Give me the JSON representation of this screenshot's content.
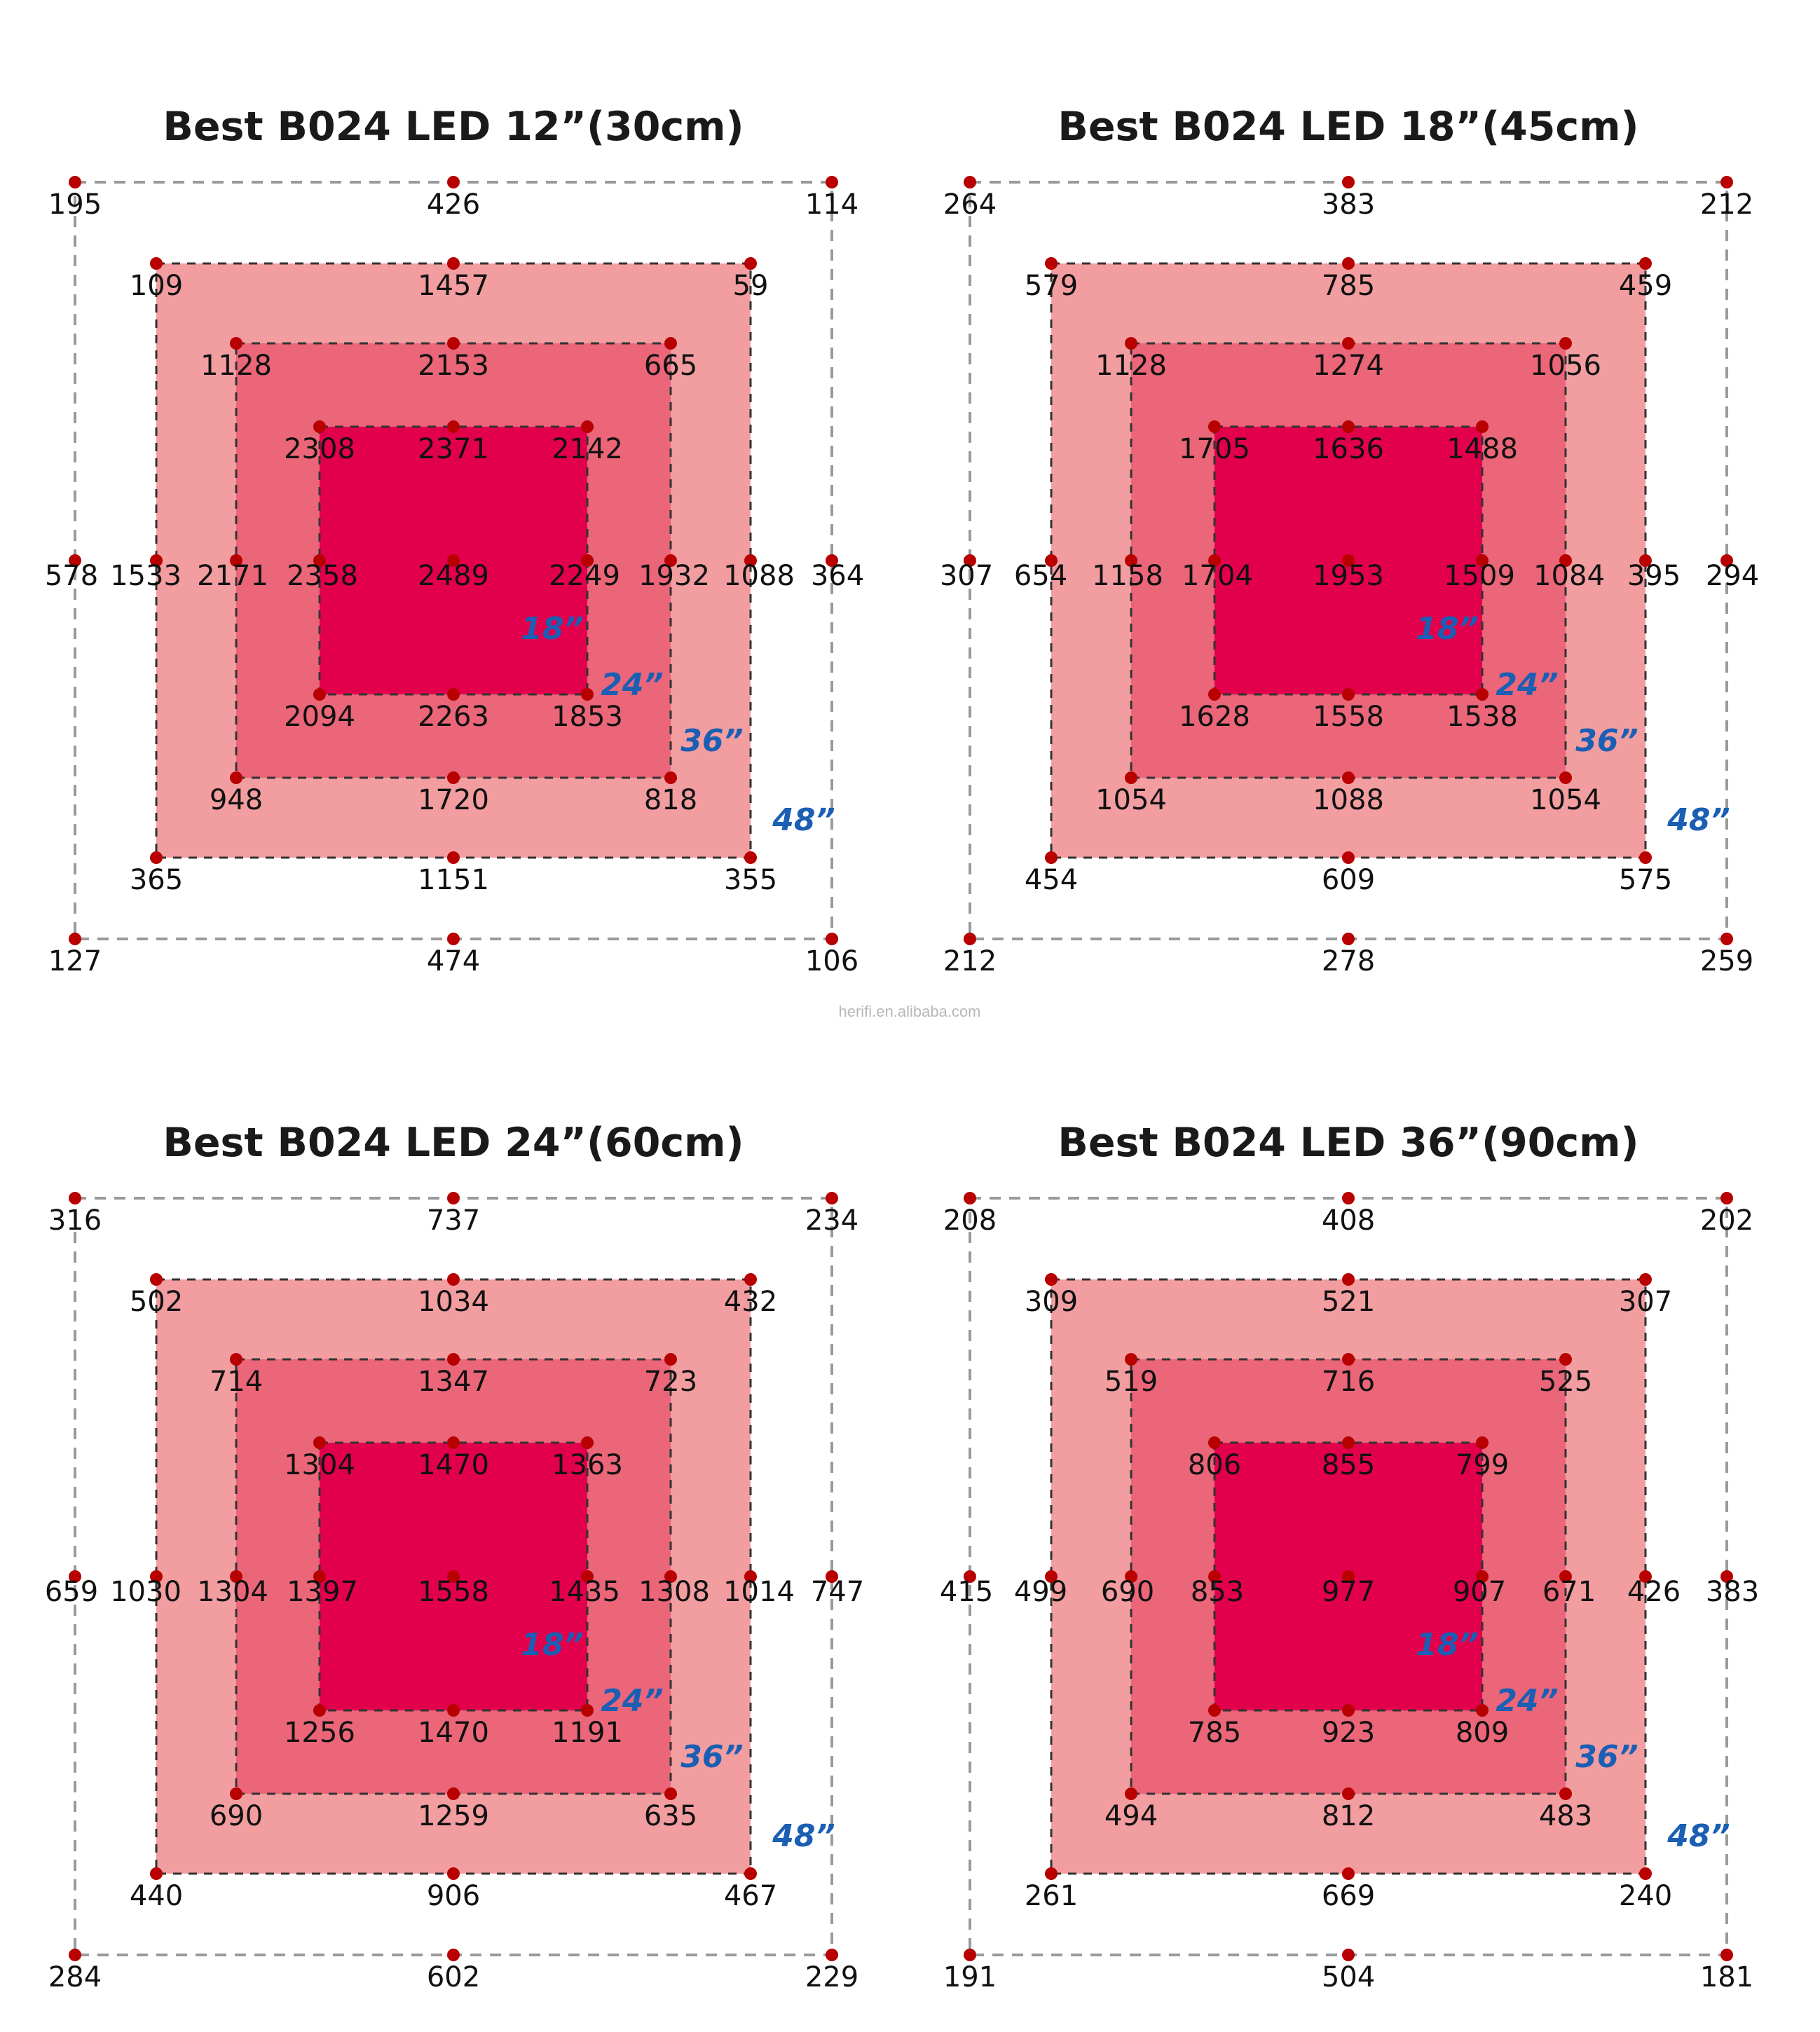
{
  "watermark": "herifi.en.alibaba.com",
  "colors": {
    "outer_fill": "#f29da0",
    "middle_fill": "#ea6678",
    "inner_fill": "#e2004d",
    "point": "#b80000",
    "ring_label": "#1a5fb4",
    "dash_outer": "#9a9a9a",
    "dash_inner": "#333333"
  },
  "ring_labels": [
    "18”",
    "24”",
    "36”",
    "48”"
  ],
  "panels": [
    {
      "title": "Best B024 LED 12”(30cm)",
      "ring48": [
        "195",
        "426",
        "114",
        "578",
        "364",
        "127",
        "474",
        "106"
      ],
      "ring36": [
        "109",
        "1457",
        "59",
        "1533",
        "1088",
        "365",
        "1151",
        "355"
      ],
      "ring24": [
        "1128",
        "2153",
        "665",
        "2171",
        "1932",
        "948",
        "1720",
        "818"
      ],
      "ring18": [
        "2308",
        "2371",
        "2142",
        "2358",
        "2249",
        "2094",
        "2263",
        "1853"
      ],
      "center": "2489"
    },
    {
      "title": "Best B024 LED 18”(45cm)",
      "ring48": [
        "264",
        "383",
        "212",
        "307",
        "294",
        "212",
        "278",
        "259"
      ],
      "ring36": [
        "579",
        "785",
        "459",
        "654",
        "395",
        "454",
        "609",
        "575"
      ],
      "ring24": [
        "1128",
        "1274",
        "1056",
        "1158",
        "1084",
        "1054",
        "1088",
        "1054"
      ],
      "ring18": [
        "1705",
        "1636",
        "1488",
        "1704",
        "1509",
        "1628",
        "1558",
        "1538"
      ],
      "center": "1953"
    },
    {
      "title": "Best B024 LED 24”(60cm)",
      "ring48": [
        "316",
        "737",
        "234",
        "659",
        "747",
        "284",
        "602",
        "229"
      ],
      "ring36": [
        "502",
        "1034",
        "432",
        "1030",
        "1014",
        "440",
        "906",
        "467"
      ],
      "ring24": [
        "714",
        "1347",
        "723",
        "1304",
        "1308",
        "690",
        "1259",
        "635"
      ],
      "ring18": [
        "1304",
        "1470",
        "1363",
        "1397",
        "1435",
        "1256",
        "1470",
        "1191"
      ],
      "center": "1558"
    },
    {
      "title": "Best B024 LED 36”(90cm)",
      "ring48": [
        "208",
        "408",
        "202",
        "415",
        "383",
        "191",
        "504",
        "181"
      ],
      "ring36": [
        "309",
        "521",
        "307",
        "499",
        "426",
        "261",
        "669",
        "240"
      ],
      "ring24": [
        "519",
        "716",
        "525",
        "690",
        "671",
        "494",
        "812",
        "483"
      ],
      "ring18": [
        "806",
        "855",
        "799",
        "853",
        "907",
        "785",
        "923",
        "809"
      ],
      "center": "977"
    }
  ]
}
